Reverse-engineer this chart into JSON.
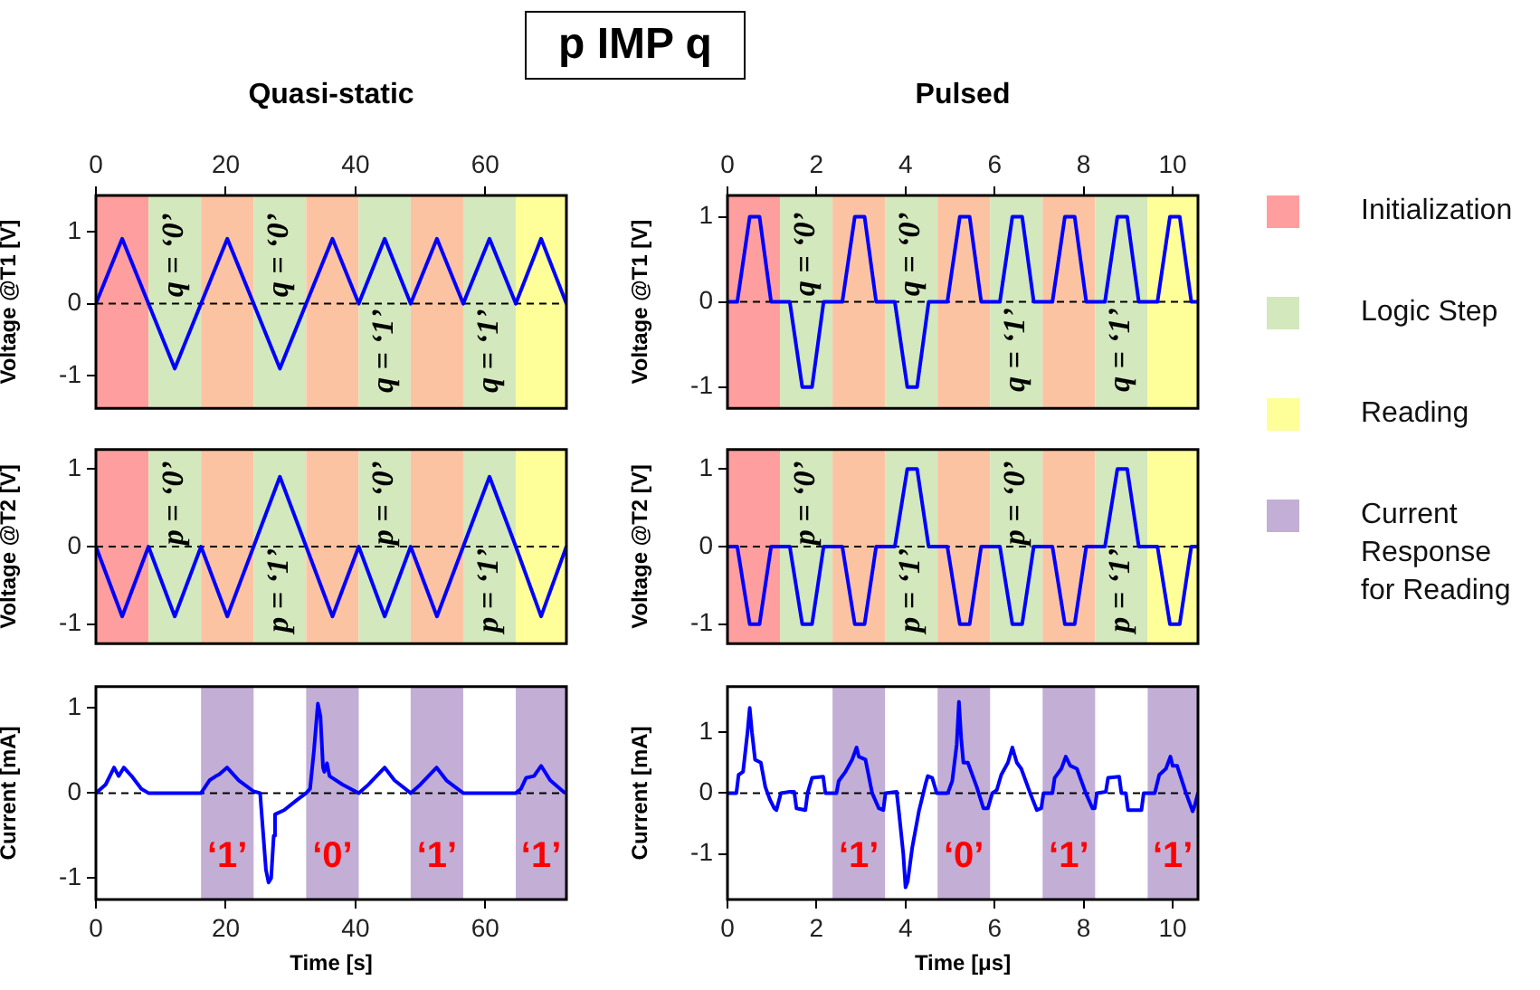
{
  "chart_data": [
    {
      "type": "line",
      "title": "Quasi-static",
      "ylabel": "Voltage @T1 [V]",
      "xlim": [
        0,
        72.5
      ],
      "x2lim": [
        0,
        72.5
      ],
      "x2ticks": [
        0,
        20,
        40,
        60
      ],
      "ylim": [
        -1.45,
        1.5
      ],
      "yticks": [
        -1,
        0,
        1
      ],
      "tick_labels": "y",
      "series": [
        {
          "color": "#0000ff",
          "x": [
            0,
            4.05,
            8.1,
            12.15,
            16.2,
            20.25,
            24.3,
            28.35,
            32.4,
            36.45,
            40.5,
            44.5,
            48.5,
            52.55,
            56.6,
            60.65,
            64.7,
            68.6,
            72.5
          ],
          "values": [
            0,
            0.9,
            0,
            -0.9,
            0,
            0.9,
            0,
            -0.9,
            0,
            0.9,
            0,
            0.9,
            0,
            0.9,
            0,
            0.9,
            0,
            0.9,
            0
          ]
        }
      ],
      "bands": [
        {
          "axis": "x",
          "from": 0,
          "to": 8.1,
          "color": "#ff9e9e"
        },
        {
          "axis": "x",
          "from": 8.1,
          "to": 16.2,
          "color": "#d3e8bd"
        },
        {
          "axis": "x",
          "from": 16.2,
          "to": 24.3,
          "color": "#fcc3a3"
        },
        {
          "axis": "x",
          "from": 24.3,
          "to": 32.4,
          "color": "#d3e8bd"
        },
        {
          "axis": "x",
          "from": 32.4,
          "to": 40.5,
          "color": "#fcc3a3"
        },
        {
          "axis": "x",
          "from": 40.5,
          "to": 48.5,
          "color": "#d3e8bd"
        },
        {
          "axis": "x",
          "from": 48.5,
          "to": 56.6,
          "color": "#fcc3a3"
        },
        {
          "axis": "x",
          "from": 56.6,
          "to": 64.7,
          "color": "#d3e8bd"
        },
        {
          "axis": "x",
          "from": 64.7,
          "to": 72.5,
          "color": "#ffff99"
        }
      ],
      "ref_lines": [
        {
          "axis": "y",
          "value": 0,
          "color": "#000000",
          "line_style": "dashed"
        }
      ],
      "annotations": [
        "q = ‘0’",
        "q = ‘0’",
        "q = ‘1’",
        "q = ‘1’"
      ]
    },
    {
      "type": "line",
      "ylabel": "Voltage @T2 [V]",
      "xlim": [
        0,
        72.5
      ],
      "ylim": [
        -1.25,
        1.25
      ],
      "yticks": [
        -1,
        0,
        1
      ],
      "tick_labels": "y",
      "series": [
        {
          "color": "#0000ff",
          "x": [
            0,
            4.05,
            8.1,
            12.15,
            16.2,
            20.25,
            24.3,
            28.35,
            32.4,
            36.45,
            40.5,
            44.5,
            48.5,
            52.55,
            56.6,
            60.65,
            64.7,
            68.6,
            72.5
          ],
          "values": [
            0,
            -0.9,
            0,
            -0.9,
            0,
            -0.9,
            0,
            0.9,
            0,
            -0.9,
            0,
            -0.9,
            0,
            -0.9,
            0,
            0.9,
            0,
            -0.9,
            0
          ]
        }
      ],
      "bands": [
        {
          "axis": "x",
          "from": 0,
          "to": 8.1,
          "color": "#ff9e9e"
        },
        {
          "axis": "x",
          "from": 8.1,
          "to": 16.2,
          "color": "#d3e8bd"
        },
        {
          "axis": "x",
          "from": 16.2,
          "to": 24.3,
          "color": "#fcc3a3"
        },
        {
          "axis": "x",
          "from": 24.3,
          "to": 32.4,
          "color": "#d3e8bd"
        },
        {
          "axis": "x",
          "from": 32.4,
          "to": 40.5,
          "color": "#fcc3a3"
        },
        {
          "axis": "x",
          "from": 40.5,
          "to": 48.5,
          "color": "#d3e8bd"
        },
        {
          "axis": "x",
          "from": 48.5,
          "to": 56.6,
          "color": "#fcc3a3"
        },
        {
          "axis": "x",
          "from": 56.6,
          "to": 64.7,
          "color": "#d3e8bd"
        },
        {
          "axis": "x",
          "from": 64.7,
          "to": 72.5,
          "color": "#ffff99"
        }
      ],
      "ref_lines": [
        {
          "axis": "y",
          "value": 0,
          "color": "#000000",
          "line_style": "dashed"
        }
      ],
      "annotations": [
        "p = ‘0’",
        "p = ‘1’",
        "p = ‘0’",
        "p = ‘1’"
      ]
    },
    {
      "type": "line",
      "ylabel": "Current [mA]",
      "xlabel": "Time [s]",
      "xlim": [
        0,
        72.5
      ],
      "xticks": [
        0,
        20,
        40,
        60
      ],
      "ylim": [
        -1.25,
        1.25
      ],
      "yticks": [
        -1,
        0,
        1
      ],
      "series": [
        {
          "color": "#0000ff",
          "x": [
            0,
            1.5,
            2.8,
            3.5,
            4.3,
            5.5,
            7,
            8.1,
            16.2,
            17.5,
            18.5,
            19,
            20.2,
            22,
            24.3,
            25.3,
            25.6,
            26.2,
            26.6,
            27,
            27.4,
            27.6,
            29,
            31,
            32.4,
            33,
            33.6,
            34.2,
            34.6,
            35,
            35.2,
            35.6,
            36,
            38,
            40.5,
            42,
            43,
            44.5,
            46,
            48.5,
            50,
            51,
            52.5,
            54,
            56.6,
            64.7,
            65.5,
            66.3,
            67.5,
            68.6,
            70,
            72.3
          ],
          "values": [
            0,
            0.1,
            0.3,
            0.2,
            0.3,
            0.2,
            0.05,
            0,
            0,
            0.15,
            0.2,
            0.22,
            0.3,
            0.15,
            0.02,
            0,
            -0.3,
            -0.9,
            -1.05,
            -1,
            -0.5,
            -0.25,
            -0.2,
            -0.08,
            0,
            0.05,
            0.5,
            1.05,
            0.9,
            0.3,
            0.25,
            0.35,
            0.2,
            0.1,
            0,
            0.1,
            0.18,
            0.3,
            0.15,
            0,
            0.1,
            0.18,
            0.3,
            0.15,
            0,
            0,
            0.05,
            0.18,
            0.2,
            0.32,
            0.15,
            0
          ]
        }
      ],
      "bands": [
        {
          "axis": "x",
          "from": 16.2,
          "to": 24.3,
          "color": "#c3aed6"
        },
        {
          "axis": "x",
          "from": 32.4,
          "to": 40.5,
          "color": "#c3aed6"
        },
        {
          "axis": "x",
          "from": 48.5,
          "to": 56.6,
          "color": "#c3aed6"
        },
        {
          "axis": "x",
          "from": 64.7,
          "to": 72.5,
          "color": "#c3aed6"
        }
      ],
      "ref_lines": [
        {
          "axis": "y",
          "value": 0,
          "color": "#000000",
          "line_style": "dashed"
        }
      ],
      "annotations": [
        "‘1’",
        "‘0’",
        "‘1’",
        "‘1’"
      ]
    },
    {
      "type": "line",
      "title": "Pulsed",
      "ylabel": "Voltage @T1 [V]",
      "xlim": [
        0,
        10.57
      ],
      "x2lim": [
        0,
        10.57
      ],
      "x2ticks": [
        0,
        2,
        4,
        6,
        8,
        10
      ],
      "ylim": [
        -1.25,
        1.25
      ],
      "yticks": [
        -1,
        0,
        1
      ],
      "tick_labels": "y",
      "series": [
        {
          "color": "#0000ff",
          "x": [
            0,
            0.22,
            0.5,
            0.72,
            0.98,
            1.18,
            1.4,
            1.68,
            1.9,
            2.16,
            2.36,
            2.58,
            2.86,
            3.08,
            3.34,
            3.54,
            3.76,
            4.04,
            4.26,
            4.52,
            4.72,
            4.94,
            5.22,
            5.44,
            5.7,
            5.9,
            6.12,
            6.4,
            6.62,
            6.88,
            7.08,
            7.3,
            7.58,
            7.8,
            8.06,
            8.26,
            8.48,
            8.76,
            8.98,
            9.24,
            9.44,
            9.66,
            9.94,
            10.16,
            10.42,
            10.57
          ],
          "values": [
            0,
            0,
            1,
            1,
            0,
            0,
            0,
            -1,
            -1,
            0,
            0,
            0,
            1,
            1,
            0,
            0,
            0,
            -1,
            -1,
            0,
            0,
            0,
            1,
            1,
            0,
            0,
            0,
            1,
            1,
            0,
            0,
            0,
            1,
            1,
            0,
            0,
            0,
            1,
            1,
            0,
            0,
            0,
            1,
            1,
            0,
            0
          ]
        }
      ],
      "bands": [
        {
          "axis": "x",
          "from": 0,
          "to": 1.18,
          "color": "#ff9e9e"
        },
        {
          "axis": "x",
          "from": 1.18,
          "to": 2.36,
          "color": "#d3e8bd"
        },
        {
          "axis": "x",
          "from": 2.36,
          "to": 3.54,
          "color": "#fcc3a3"
        },
        {
          "axis": "x",
          "from": 3.54,
          "to": 4.72,
          "color": "#d3e8bd"
        },
        {
          "axis": "x",
          "from": 4.72,
          "to": 5.9,
          "color": "#fcc3a3"
        },
        {
          "axis": "x",
          "from": 5.9,
          "to": 7.08,
          "color": "#d3e8bd"
        },
        {
          "axis": "x",
          "from": 7.08,
          "to": 8.26,
          "color": "#fcc3a3"
        },
        {
          "axis": "x",
          "from": 8.26,
          "to": 9.44,
          "color": "#d3e8bd"
        },
        {
          "axis": "x",
          "from": 9.44,
          "to": 10.57,
          "color": "#ffff99"
        }
      ],
      "ref_lines": [
        {
          "axis": "y",
          "value": 0,
          "color": "#000000",
          "line_style": "dashed"
        }
      ],
      "annotations": [
        "q = ‘0’",
        "q = ‘0’",
        "q = ‘1’",
        "q = ‘1’"
      ]
    },
    {
      "type": "line",
      "ylabel": "Voltage @T2 [V]",
      "xlim": [
        0,
        10.57
      ],
      "ylim": [
        -1.25,
        1.25
      ],
      "yticks": [
        -1,
        0,
        1
      ],
      "tick_labels": "y",
      "series": [
        {
          "color": "#0000ff",
          "x": [
            0,
            0.22,
            0.5,
            0.72,
            0.98,
            1.18,
            1.4,
            1.68,
            1.9,
            2.16,
            2.36,
            2.58,
            2.86,
            3.08,
            3.34,
            3.54,
            3.76,
            4.04,
            4.26,
            4.52,
            4.72,
            4.94,
            5.22,
            5.44,
            5.7,
            5.9,
            6.12,
            6.4,
            6.62,
            6.88,
            7.08,
            7.3,
            7.58,
            7.8,
            8.06,
            8.26,
            8.48,
            8.76,
            8.98,
            9.24,
            9.44,
            9.66,
            9.94,
            10.16,
            10.42,
            10.57
          ],
          "values": [
            0,
            0,
            -1,
            -1,
            0,
            0,
            0,
            -1,
            -1,
            0,
            0,
            0,
            -1,
            -1,
            0,
            0,
            0,
            1,
            1,
            0,
            0,
            0,
            -1,
            -1,
            0,
            0,
            0,
            -1,
            -1,
            0,
            0,
            0,
            -1,
            -1,
            0,
            0,
            0,
            1,
            1,
            0,
            0,
            0,
            -1,
            -1,
            0,
            0
          ]
        }
      ],
      "bands": [
        {
          "axis": "x",
          "from": 0,
          "to": 1.18,
          "color": "#ff9e9e"
        },
        {
          "axis": "x",
          "from": 1.18,
          "to": 2.36,
          "color": "#d3e8bd"
        },
        {
          "axis": "x",
          "from": 2.36,
          "to": 3.54,
          "color": "#fcc3a3"
        },
        {
          "axis": "x",
          "from": 3.54,
          "to": 4.72,
          "color": "#d3e8bd"
        },
        {
          "axis": "x",
          "from": 4.72,
          "to": 5.9,
          "color": "#fcc3a3"
        },
        {
          "axis": "x",
          "from": 5.9,
          "to": 7.08,
          "color": "#d3e8bd"
        },
        {
          "axis": "x",
          "from": 7.08,
          "to": 8.26,
          "color": "#fcc3a3"
        },
        {
          "axis": "x",
          "from": 8.26,
          "to": 9.44,
          "color": "#d3e8bd"
        },
        {
          "axis": "x",
          "from": 9.44,
          "to": 10.57,
          "color": "#ffff99"
        }
      ],
      "ref_lines": [
        {
          "axis": "y",
          "value": 0,
          "color": "#000000",
          "line_style": "dashed"
        }
      ],
      "annotations": [
        "p = ‘0’",
        "p = ‘1’",
        "p = ‘0’",
        "p = ‘1’"
      ]
    },
    {
      "type": "line",
      "ylabel": "Current [mA]",
      "xlabel": "Time [μs]",
      "xlim": [
        0,
        10.57
      ],
      "xticks": [
        0,
        2,
        4,
        6,
        8,
        10
      ],
      "ylim": [
        -1.75,
        1.75
      ],
      "yticks": [
        -1,
        0,
        1
      ],
      "series": [
        {
          "color": "#0000ff",
          "x": [
            0,
            0.2,
            0.25,
            0.35,
            0.45,
            0.5,
            0.55,
            0.62,
            0.75,
            0.85,
            0.95,
            1.05,
            1.1,
            1.2,
            1.4,
            1.5,
            1.55,
            1.75,
            1.8,
            1.9,
            2.15,
            2.2,
            2.45,
            2.5,
            2.65,
            2.8,
            2.9,
            2.95,
            3.1,
            3.25,
            3.4,
            3.5,
            3.55,
            3.8,
            3.85,
            3.95,
            4,
            4.05,
            4.15,
            4.3,
            4.45,
            4.5,
            4.6,
            4.7,
            4.95,
            5.05,
            5.15,
            5.2,
            5.25,
            5.3,
            5.4,
            5.6,
            5.75,
            5.85,
            5.95,
            6.05,
            6.15,
            6.3,
            6.4,
            6.5,
            6.6,
            6.8,
            6.95,
            7.05,
            7.1,
            7.3,
            7.35,
            7.5,
            7.6,
            7.7,
            7.85,
            8.05,
            8.2,
            8.25,
            8.3,
            8.5,
            8.55,
            8.8,
            8.85,
            8.95,
            9,
            9.3,
            9.35,
            9.6,
            9.7,
            9.85,
            9.95,
            10,
            10.1,
            10.3,
            10.45,
            10.5,
            10.57
          ],
          "values": [
            0,
            0,
            0.3,
            0.35,
            1,
            1.4,
            1,
            0.55,
            0.5,
            0.1,
            -0.1,
            -0.25,
            -0.28,
            0,
            0.02,
            0.02,
            -0.25,
            -0.28,
            0,
            0.25,
            0.27,
            0,
            0,
            0.2,
            0.35,
            0.55,
            0.75,
            0.6,
            0.55,
            0,
            -0.25,
            -0.28,
            0,
            0.02,
            -0.3,
            -1,
            -1.55,
            -1.45,
            -0.9,
            -0.3,
            0.15,
            0.28,
            0.25,
            0,
            0,
            0.2,
            0.8,
            1.5,
            0.9,
            0.5,
            0.5,
            0.1,
            -0.25,
            -0.25,
            0,
            0.05,
            0.3,
            0.5,
            0.75,
            0.5,
            0.4,
            0,
            -0.28,
            -0.25,
            0,
            0,
            0.25,
            0.4,
            0.6,
            0.45,
            0.4,
            0,
            -0.25,
            -0.25,
            0,
            0.02,
            0.25,
            0.27,
            0,
            0,
            -0.28,
            -0.28,
            0,
            0,
            0.3,
            0.4,
            0.6,
            0.45,
            0.45,
            0,
            -0.3,
            -0.2,
            0
          ]
        }
      ],
      "bands": [
        {
          "axis": "x",
          "from": 2.36,
          "to": 3.54,
          "color": "#c3aed6"
        },
        {
          "axis": "x",
          "from": 4.72,
          "to": 5.9,
          "color": "#c3aed6"
        },
        {
          "axis": "x",
          "from": 7.08,
          "to": 8.26,
          "color": "#c3aed6"
        },
        {
          "axis": "x",
          "from": 9.44,
          "to": 10.57,
          "color": "#c3aed6"
        }
      ],
      "ref_lines": [
        {
          "axis": "y",
          "value": 0,
          "color": "#000000",
          "line_style": "dashed"
        }
      ],
      "annotations": [
        "‘1’",
        "‘0’",
        "‘1’",
        "‘1’"
      ]
    },
    {
      "type": "other",
      "title": "p IMP q",
      "legend": "right",
      "series": [
        {
          "name": "Initialization",
          "color": "#ff9e9e"
        },
        {
          "name": "Logic Step",
          "color": "#d3e8bd"
        },
        {
          "name": "Reading",
          "color": "#ffff99"
        },
        {
          "name": "Current Response for Reading",
          "color": "#c3aed6"
        }
      ]
    }
  ]
}
